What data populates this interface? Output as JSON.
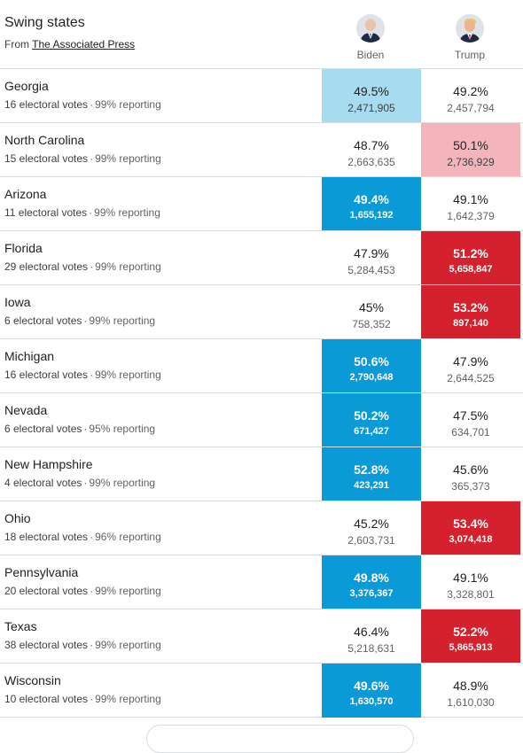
{
  "header": {
    "title": "Swing states",
    "source_prefix": "From",
    "source_link": "The Associated Press"
  },
  "candidates": {
    "biden": {
      "name": "Biden",
      "color": "#0b9ad8"
    },
    "trump": {
      "name": "Trump",
      "color": "#d4212d"
    }
  },
  "rows": [
    {
      "state": "Georgia",
      "electoral": "16 electoral votes",
      "reporting": "99% reporting",
      "biden_pct": "49.5%",
      "biden_votes": "2,471,905",
      "trump_pct": "49.2%",
      "trump_votes": "2,457,794",
      "biden_style": "lean-blue",
      "trump_style": ""
    },
    {
      "state": "North Carolina",
      "electoral": "15 electoral votes",
      "reporting": "99% reporting",
      "biden_pct": "48.7%",
      "biden_votes": "2,663,635",
      "trump_pct": "50.1%",
      "trump_votes": "2,736,929",
      "biden_style": "",
      "trump_style": "lean-red"
    },
    {
      "state": "Arizona",
      "electoral": "11 electoral votes",
      "reporting": "99% reporting",
      "biden_pct": "49.4%",
      "biden_votes": "1,655,192",
      "trump_pct": "49.1%",
      "trump_votes": "1,642,379",
      "biden_style": "win-blue",
      "trump_style": ""
    },
    {
      "state": "Florida",
      "electoral": "29 electoral votes",
      "reporting": "99% reporting",
      "biden_pct": "47.9%",
      "biden_votes": "5,284,453",
      "trump_pct": "51.2%",
      "trump_votes": "5,658,847",
      "biden_style": "",
      "trump_style": "win-red"
    },
    {
      "state": "Iowa",
      "electoral": "6 electoral votes",
      "reporting": "99% reporting",
      "biden_pct": "45%",
      "biden_votes": "758,352",
      "trump_pct": "53.2%",
      "trump_votes": "897,140",
      "biden_style": "",
      "trump_style": "win-red"
    },
    {
      "state": "Michigan",
      "electoral": "16 electoral votes",
      "reporting": "99% reporting",
      "biden_pct": "50.6%",
      "biden_votes": "2,790,648",
      "trump_pct": "47.9%",
      "trump_votes": "2,644,525",
      "biden_style": "win-blue",
      "trump_style": ""
    },
    {
      "state": "Nevada",
      "electoral": "6 electoral votes",
      "reporting": "95% reporting",
      "biden_pct": "50.2%",
      "biden_votes": "671,427",
      "trump_pct": "47.5%",
      "trump_votes": "634,701",
      "biden_style": "win-blue",
      "trump_style": ""
    },
    {
      "state": "New Hampshire",
      "electoral": "4 electoral votes",
      "reporting": "99% reporting",
      "biden_pct": "52.8%",
      "biden_votes": "423,291",
      "trump_pct": "45.6%",
      "trump_votes": "365,373",
      "biden_style": "win-blue",
      "trump_style": ""
    },
    {
      "state": "Ohio",
      "electoral": "18 electoral votes",
      "reporting": "96% reporting",
      "biden_pct": "45.2%",
      "biden_votes": "2,603,731",
      "trump_pct": "53.4%",
      "trump_votes": "3,074,418",
      "biden_style": "",
      "trump_style": "win-red"
    },
    {
      "state": "Pennsylvania",
      "electoral": "20 electoral votes",
      "reporting": "99% reporting",
      "biden_pct": "49.8%",
      "biden_votes": "3,376,367",
      "trump_pct": "49.1%",
      "trump_votes": "3,328,801",
      "biden_style": "win-blue",
      "trump_style": ""
    },
    {
      "state": "Texas",
      "electoral": "38 electoral votes",
      "reporting": "99% reporting",
      "biden_pct": "46.4%",
      "biden_votes": "5,218,631",
      "trump_pct": "52.2%",
      "trump_votes": "5,865,913",
      "biden_style": "",
      "trump_style": "win-red"
    },
    {
      "state": "Wisconsin",
      "electoral": "10 electoral votes",
      "reporting": "99% reporting",
      "biden_pct": "49.6%",
      "biden_votes": "1,630,570",
      "trump_pct": "48.9%",
      "trump_votes": "1,610,030",
      "biden_style": "win-blue",
      "trump_style": ""
    }
  ]
}
